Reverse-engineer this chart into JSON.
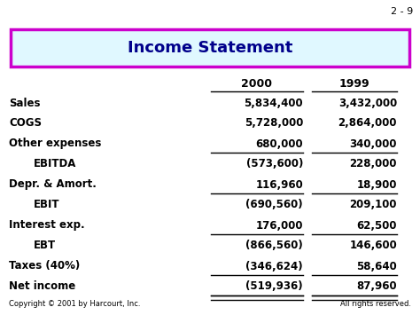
{
  "slide_number": "2 - 9",
  "title": "Income Statement",
  "title_bg": "#e0f8ff",
  "title_border": "#cc00cc",
  "title_color": "#00008B",
  "col1_header": "2000",
  "col2_header": "1999",
  "rows": [
    {
      "label": "Sales",
      "indent": false,
      "val1": "5,834,400",
      "val2": "3,432,000",
      "underline1": false,
      "underline2": false
    },
    {
      "label": "COGS",
      "indent": false,
      "val1": "5,728,000",
      "val2": "2,864,000",
      "underline1": false,
      "underline2": false
    },
    {
      "label": "Other expenses",
      "indent": false,
      "val1": "680,000",
      "val2": "340,000",
      "underline1": true,
      "underline2": true
    },
    {
      "label": "EBITDA",
      "indent": true,
      "val1": "(573,600)",
      "val2": "228,000",
      "underline1": false,
      "underline2": false
    },
    {
      "label": "Depr. & Amort.",
      "indent": false,
      "val1": "116,960",
      "val2": "18,900",
      "underline1": true,
      "underline2": true
    },
    {
      "label": "EBIT",
      "indent": true,
      "val1": "(690,560)",
      "val2": "209,100",
      "underline1": false,
      "underline2": false
    },
    {
      "label": "Interest exp.",
      "indent": false,
      "val1": "176,000",
      "val2": "62,500",
      "underline1": true,
      "underline2": true
    },
    {
      "label": "EBT",
      "indent": true,
      "val1": "(866,560)",
      "val2": "146,600",
      "underline1": false,
      "underline2": false
    },
    {
      "label": "Taxes (40%)",
      "indent": false,
      "val1": "(346,624)",
      "val2": "58,640",
      "underline1": true,
      "underline2": true
    },
    {
      "label": "Net income",
      "indent": false,
      "val1": "(519,936)",
      "val2": "87,960",
      "underline1": true,
      "underline2": true
    }
  ],
  "footer_left": "Copyright © 2001 by Harcourt, Inc.",
  "footer_right": "All rights reserved.",
  "bg_color": "#ffffff"
}
